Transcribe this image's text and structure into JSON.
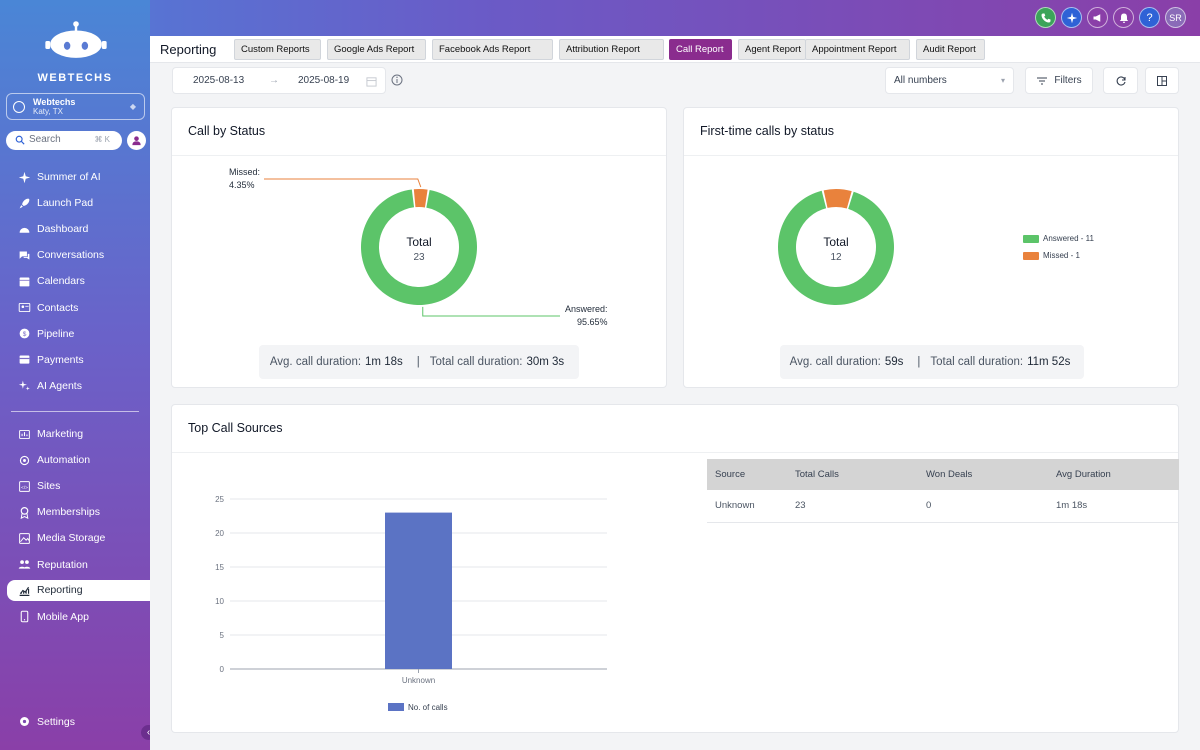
{
  "brand": {
    "name": "WEBTECHS"
  },
  "account": {
    "name": "Webtechs",
    "location": "Katy, TX"
  },
  "search": {
    "placeholder": "Search",
    "shortcut": "⌘ K"
  },
  "header": {
    "user_initials": "SR",
    "icons": [
      "phone-icon",
      "sparkle-icon",
      "megaphone-icon",
      "bell-icon",
      "help-icon"
    ]
  },
  "sidebar": {
    "items": [
      {
        "label": "Summer of AI",
        "icon": "sparkle-icon"
      },
      {
        "label": "Launch Pad",
        "icon": "rocket-icon"
      },
      {
        "label": "Dashboard",
        "icon": "dashboard-icon"
      },
      {
        "label": "Conversations",
        "icon": "chat-icon"
      },
      {
        "label": "Calendars",
        "icon": "calendar-icon"
      },
      {
        "label": "Contacts",
        "icon": "contacts-icon"
      },
      {
        "label": "Pipeline",
        "icon": "pipeline-icon"
      },
      {
        "label": "Payments",
        "icon": "payments-icon"
      },
      {
        "label": "AI Agents",
        "icon": "ai-icon"
      }
    ],
    "items2": [
      {
        "label": "Marketing",
        "icon": "marketing-icon"
      },
      {
        "label": "Automation",
        "icon": "automation-icon"
      },
      {
        "label": "Sites",
        "icon": "sites-icon"
      },
      {
        "label": "Memberships",
        "icon": "memberships-icon"
      },
      {
        "label": "Media Storage",
        "icon": "media-icon"
      },
      {
        "label": "Reputation",
        "icon": "reputation-icon"
      },
      {
        "label": "Reporting",
        "icon": "reporting-icon",
        "active": true
      },
      {
        "label": "Mobile App",
        "icon": "mobile-icon"
      }
    ],
    "settings_label": "Settings"
  },
  "page": {
    "title": "Reporting",
    "tabs": [
      "Custom Reports",
      "Google Ads Report",
      "Facebook Ads Report",
      "Attribution Report",
      "Call Report",
      "Agent Report",
      "Appointment Report",
      "Audit Report"
    ],
    "active_tab": "Call Report"
  },
  "filters": {
    "start_date": "2025-08-13",
    "end_date": "2025-08-19",
    "number_select": "All numbers",
    "filters_label": "Filters"
  },
  "call_by_status": {
    "title": "Call by Status",
    "total_label": "Total",
    "total": "23",
    "missed_label": "Missed:",
    "missed_pct": "4.35%",
    "answered_label": "Answered:",
    "answered_pct": "95.65%",
    "avg_label": "Avg. call duration:",
    "avg_value": "1m 18s",
    "sep": "|",
    "total_dur_label": "Total call duration:",
    "total_dur_value": "30m 3s"
  },
  "first_time": {
    "title": "First-time calls by status",
    "total_label": "Total",
    "total": "12",
    "legend_answered": "Answered - 11",
    "legend_missed": "Missed - 1",
    "avg_label": "Avg. call duration:",
    "avg_value": "59s",
    "sep": "|",
    "total_dur_label": "Total call duration:",
    "total_dur_value": "11m 52s"
  },
  "top_sources": {
    "title": "Top Call Sources",
    "table": {
      "headers": [
        "Source",
        "Total Calls",
        "Won Deals",
        "Avg Duration"
      ],
      "rows": [
        [
          "Unknown",
          "23",
          "0",
          "1m 18s"
        ]
      ]
    }
  },
  "colors": {
    "answered": "#5cc469",
    "missed": "#e9823c",
    "bar": "#5b73c4",
    "active_tab": "#8a2c8e"
  },
  "chart_data": [
    {
      "type": "pie",
      "title": "Call by Status",
      "categories": [
        "Answered",
        "Missed"
      ],
      "values": [
        22,
        1
      ],
      "percentages": [
        95.65,
        4.35
      ]
    },
    {
      "type": "pie",
      "title": "First-time calls by status",
      "categories": [
        "Answered",
        "Missed"
      ],
      "values": [
        11,
        1
      ]
    },
    {
      "type": "bar",
      "title": "Top Call Sources",
      "categories": [
        "Unknown"
      ],
      "series": [
        {
          "name": "No. of calls",
          "values": [
            23
          ]
        }
      ],
      "yticks": [
        "0",
        "5",
        "10",
        "15",
        "20",
        "25"
      ],
      "ylim": [
        0,
        25
      ],
      "grid": true,
      "legend": "bottom"
    }
  ]
}
